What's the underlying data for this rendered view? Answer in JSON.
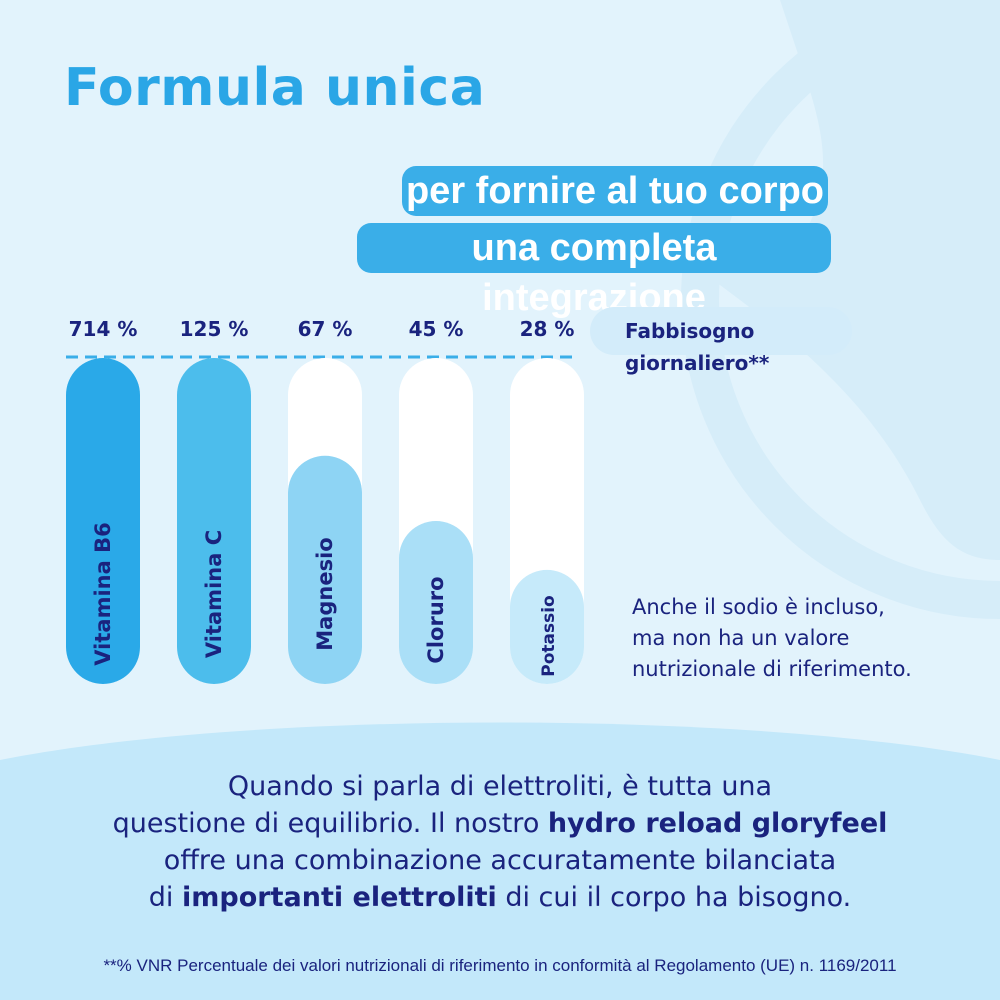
{
  "title": "Formula unica",
  "subtitle": {
    "line1": "per fornire al tuo corpo",
    "line2": "una completa integrazione"
  },
  "legend": {
    "line1": "Fabbisogno",
    "line2": "giornaliero**"
  },
  "note": {
    "line1": "Anche il sodio è incluso,",
    "line2": "ma non ha un valore",
    "line3": "nutrizionale di riferimento."
  },
  "body": {
    "line1": "Quando si parla di elettroliti, è tutta una",
    "line2_pre": "questione di equilibrio. Il nostro ",
    "line2_bold": "hydro reload gloryfeel",
    "line3": "offre una combinazione accuratamente bilanciata",
    "line4_pre": "di ",
    "line4_bold": "importanti elettroliti",
    "line4_post": " di cui il corpo ha bisogno."
  },
  "footnote": "**% VNR Percentuale dei valori nutrizionali di riferimento in conformità al Regolamento (UE) n. 1169/2011",
  "colors": {
    "accent": "#2aa6e6",
    "text_dark": "#1a237e",
    "bar_b6": "#2aa9e8",
    "bar_c": "#4cbdec",
    "bar_magnesio": "#8ed4f4",
    "bar_cloruro": "#aadff7",
    "bar_potassio": "#c6eafa",
    "bar_track": "#ffffff",
    "reference_line": "#3aaee8"
  },
  "chart_data": {
    "type": "bar",
    "orientation": "vertical",
    "categories": [
      "Vitamina B6",
      "Vitamina C",
      "Magnesio",
      "Cloruro",
      "Potassio"
    ],
    "value_labels": [
      "714 %",
      "125 %",
      "67 %",
      "45 %",
      "28 %"
    ],
    "values": [
      714,
      125,
      67,
      45,
      28
    ],
    "display_fill_fraction": [
      1.0,
      1.0,
      0.7,
      0.5,
      0.35
    ],
    "reference_line": {
      "value": 100,
      "style": "dashed"
    },
    "ylim": [
      0,
      100
    ],
    "legend_position": "right"
  }
}
